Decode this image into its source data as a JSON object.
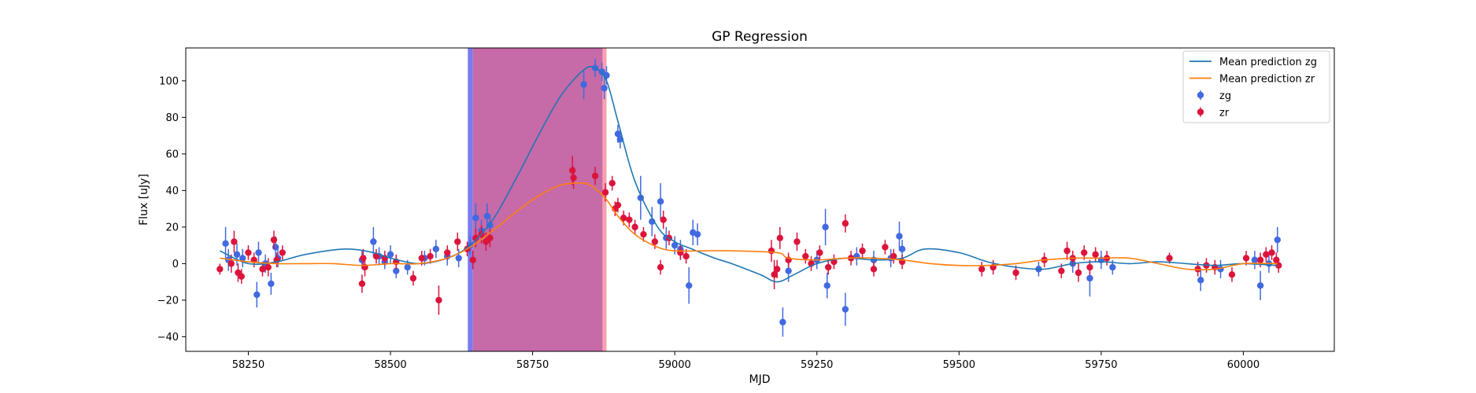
{
  "chart_data": {
    "type": "scatter",
    "title": "GP Regression",
    "xlabel": "MJD",
    "ylabel": "Flux [uJy]",
    "xlim": [
      58140,
      60160
    ],
    "ylim": [
      -48,
      118
    ],
    "x_ticks": [
      58250,
      58500,
      58750,
      59000,
      59250,
      59500,
      59750,
      60000
    ],
    "y_ticks": [
      -40,
      -20,
      0,
      20,
      40,
      60,
      80,
      100
    ],
    "grid": false,
    "legend_position": "top-right",
    "colors": {
      "zg_points": "#4169e1",
      "zr_points": "#dc143c",
      "zg_mean": "#1f77b4",
      "zr_mean": "#ff7f0e",
      "zg_band": "#7b7bef",
      "zr_band": "#f8a0b0",
      "overlap_band": "#c66aa8"
    },
    "shaded_regions": [
      {
        "x0": 58636,
        "x1": 58645,
        "color": "#7b7bef"
      },
      {
        "x0": 58645,
        "x1": 58873,
        "color": "#c66aa8"
      },
      {
        "x0": 58873,
        "x1": 58880,
        "color": "#f8a0b0"
      }
    ],
    "lines": [
      {
        "name": "Mean prediction zg",
        "color": "#1f77b4",
        "x": [
          58200,
          58250,
          58300,
          58350,
          58420,
          58470,
          58500,
          58550,
          58600,
          58640,
          58680,
          58720,
          58760,
          58800,
          58840,
          58860,
          58880,
          58900,
          58930,
          58970,
          59000,
          59030,
          59070,
          59100,
          59150,
          59180,
          59210,
          59250,
          59300,
          59350,
          59400,
          59440,
          59500,
          59550,
          59600,
          59650,
          59700,
          59750,
          59800,
          59850,
          59900,
          59950,
          60000,
          60060
        ],
        "y": [
          7,
          0,
          1,
          5,
          8,
          6,
          3,
          0,
          3,
          10,
          24,
          46,
          70,
          92,
          106,
          107,
          100,
          78,
          45,
          20,
          12,
          8,
          3,
          0,
          -6,
          -10,
          -6,
          0,
          3,
          2,
          3,
          8,
          6,
          1,
          -2,
          -3,
          0,
          1,
          0,
          1,
          0,
          -1,
          0,
          -1
        ]
      },
      {
        "name": "Mean prediction zr",
        "color": "#ff7f0e",
        "x": [
          58200,
          58250,
          58300,
          58350,
          58400,
          58450,
          58500,
          58550,
          58600,
          58640,
          58680,
          58720,
          58760,
          58800,
          58840,
          58860,
          58880,
          58900,
          58930,
          58970,
          59000,
          59050,
          59100,
          59180,
          59200,
          59250,
          59300,
          59350,
          59400,
          59450,
          59500,
          59550,
          59600,
          59650,
          59700,
          59750,
          59800,
          59850,
          59900,
          59950,
          60000,
          60060
        ],
        "y": [
          3,
          1,
          0,
          0,
          0,
          -1,
          0,
          0,
          3,
          9,
          18,
          28,
          37,
          43,
          44,
          41,
          35,
          26,
          16,
          9,
          7,
          7,
          7,
          6,
          3,
          2,
          3,
          3,
          2,
          0,
          -1,
          -1,
          0,
          2,
          3,
          3,
          3,
          0,
          -3,
          -3,
          0,
          0
        ]
      }
    ],
    "series": [
      {
        "name": "zg",
        "color": "#4169e1",
        "points": [
          {
            "x": 58210,
            "y": 11,
            "err": 9
          },
          {
            "x": 58215,
            "y": 2,
            "err": 6
          },
          {
            "x": 58230,
            "y": 5,
            "err": 6
          },
          {
            "x": 58240,
            "y": 3,
            "err": 5
          },
          {
            "x": 58265,
            "y": -17,
            "err": 7
          },
          {
            "x": 58268,
            "y": 6,
            "err": 6
          },
          {
            "x": 58280,
            "y": 0,
            "err": 5
          },
          {
            "x": 58290,
            "y": -11,
            "err": 6
          },
          {
            "x": 58298,
            "y": 9,
            "err": 6
          },
          {
            "x": 58302,
            "y": 3,
            "err": 5
          },
          {
            "x": 58450,
            "y": 2,
            "err": 5
          },
          {
            "x": 58470,
            "y": 12,
            "err": 8
          },
          {
            "x": 58480,
            "y": 4,
            "err": 5
          },
          {
            "x": 58490,
            "y": 1,
            "err": 4
          },
          {
            "x": 58500,
            "y": 5,
            "err": 5
          },
          {
            "x": 58510,
            "y": -4,
            "err": 4
          },
          {
            "x": 58530,
            "y": -2,
            "err": 4
          },
          {
            "x": 58560,
            "y": 3,
            "err": 4
          },
          {
            "x": 58580,
            "y": 8,
            "err": 5
          },
          {
            "x": 58600,
            "y": 4,
            "err": 5
          },
          {
            "x": 58620,
            "y": 3,
            "err": 5
          },
          {
            "x": 58640,
            "y": 10,
            "err": 5
          },
          {
            "x": 58650,
            "y": 25,
            "err": 8
          },
          {
            "x": 58660,
            "y": 18,
            "err": 6
          },
          {
            "x": 58670,
            "y": 26,
            "err": 7
          },
          {
            "x": 58675,
            "y": 21,
            "err": 6
          },
          {
            "x": 58840,
            "y": 98,
            "err": 8
          },
          {
            "x": 58860,
            "y": 107,
            "err": 5
          },
          {
            "x": 58872,
            "y": 105,
            "err": 5
          },
          {
            "x": 58876,
            "y": 96,
            "err": 6
          },
          {
            "x": 58880,
            "y": 103,
            "err": 5
          },
          {
            "x": 58900,
            "y": 71,
            "err": 5
          },
          {
            "x": 58904,
            "y": 68,
            "err": 5
          },
          {
            "x": 58940,
            "y": 36,
            "err": 12
          },
          {
            "x": 58960,
            "y": 23,
            "err": 8
          },
          {
            "x": 58975,
            "y": 34,
            "err": 10
          },
          {
            "x": 58985,
            "y": 14,
            "err": 6
          },
          {
            "x": 59000,
            "y": 10,
            "err": 5
          },
          {
            "x": 59010,
            "y": 8,
            "err": 5
          },
          {
            "x": 59025,
            "y": -12,
            "err": 10
          },
          {
            "x": 59032,
            "y": 17,
            "err": 7
          },
          {
            "x": 59040,
            "y": 16,
            "err": 6
          },
          {
            "x": 59190,
            "y": -32,
            "err": 8
          },
          {
            "x": 59200,
            "y": -4,
            "err": 6
          },
          {
            "x": 59250,
            "y": 2,
            "err": 5
          },
          {
            "x": 59265,
            "y": 20,
            "err": 10
          },
          {
            "x": 59268,
            "y": -12,
            "err": 7
          },
          {
            "x": 59300,
            "y": -25,
            "err": 9
          },
          {
            "x": 59320,
            "y": 4,
            "err": 5
          },
          {
            "x": 59350,
            "y": 2,
            "err": 5
          },
          {
            "x": 59380,
            "y": 3,
            "err": 5
          },
          {
            "x": 59395,
            "y": 15,
            "err": 8
          },
          {
            "x": 59400,
            "y": 8,
            "err": 5
          },
          {
            "x": 59640,
            "y": -3,
            "err": 4
          },
          {
            "x": 59700,
            "y": 0,
            "err": 5
          },
          {
            "x": 59730,
            "y": -8,
            "err": 10
          },
          {
            "x": 59750,
            "y": 2,
            "err": 5
          },
          {
            "x": 59770,
            "y": -2,
            "err": 4
          },
          {
            "x": 59925,
            "y": -9,
            "err": 6
          },
          {
            "x": 59960,
            "y": -3,
            "err": 5
          },
          {
            "x": 60020,
            "y": 2,
            "err": 5
          },
          {
            "x": 60030,
            "y": -12,
            "err": 8
          },
          {
            "x": 60045,
            "y": 0,
            "err": 5
          },
          {
            "x": 60060,
            "y": 13,
            "err": 7
          }
        ]
      },
      {
        "name": "zr",
        "color": "#dc143c",
        "points": [
          {
            "x": 58200,
            "y": -3,
            "err": 3
          },
          {
            "x": 58220,
            "y": 0,
            "err": 5
          },
          {
            "x": 58225,
            "y": 12,
            "err": 6
          },
          {
            "x": 58232,
            "y": -5,
            "err": 5
          },
          {
            "x": 58238,
            "y": -7,
            "err": 4
          },
          {
            "x": 58250,
            "y": 6,
            "err": 4
          },
          {
            "x": 58260,
            "y": 2,
            "err": 4
          },
          {
            "x": 58275,
            "y": -3,
            "err": 4
          },
          {
            "x": 58285,
            "y": -2,
            "err": 5
          },
          {
            "x": 58295,
            "y": 13,
            "err": 5
          },
          {
            "x": 58300,
            "y": 2,
            "err": 4
          },
          {
            "x": 58310,
            "y": 6,
            "err": 4
          },
          {
            "x": 58450,
            "y": -11,
            "err": 5
          },
          {
            "x": 58452,
            "y": 3,
            "err": 5
          },
          {
            "x": 58455,
            "y": -2,
            "err": 5
          },
          {
            "x": 58475,
            "y": 4,
            "err": 4
          },
          {
            "x": 58490,
            "y": 3,
            "err": 4
          },
          {
            "x": 58510,
            "y": 1,
            "err": 4
          },
          {
            "x": 58540,
            "y": -8,
            "err": 4
          },
          {
            "x": 58555,
            "y": 3,
            "err": 4
          },
          {
            "x": 58570,
            "y": 4,
            "err": 4
          },
          {
            "x": 58585,
            "y": -20,
            "err": 8
          },
          {
            "x": 58600,
            "y": 6,
            "err": 4
          },
          {
            "x": 58618,
            "y": 12,
            "err": 5
          },
          {
            "x": 58635,
            "y": 8,
            "err": 4
          },
          {
            "x": 58645,
            "y": 2,
            "err": 5
          },
          {
            "x": 58650,
            "y": 14,
            "err": 5
          },
          {
            "x": 58660,
            "y": 16,
            "err": 5
          },
          {
            "x": 58668,
            "y": 12,
            "err": 5
          },
          {
            "x": 58675,
            "y": 14,
            "err": 5
          },
          {
            "x": 58820,
            "y": 51,
            "err": 8
          },
          {
            "x": 58822,
            "y": 47,
            "err": 6
          },
          {
            "x": 58860,
            "y": 48,
            "err": 5
          },
          {
            "x": 58878,
            "y": 39,
            "err": 5
          },
          {
            "x": 58890,
            "y": 44,
            "err": 4
          },
          {
            "x": 58895,
            "y": 30,
            "err": 4
          },
          {
            "x": 58900,
            "y": 32,
            "err": 4
          },
          {
            "x": 58910,
            "y": 25,
            "err": 4
          },
          {
            "x": 58920,
            "y": 24,
            "err": 4
          },
          {
            "x": 58930,
            "y": 20,
            "err": 4
          },
          {
            "x": 58945,
            "y": 16,
            "err": 4
          },
          {
            "x": 58965,
            "y": 12,
            "err": 4
          },
          {
            "x": 58975,
            "y": -2,
            "err": 4
          },
          {
            "x": 58980,
            "y": 24,
            "err": 5
          },
          {
            "x": 58990,
            "y": 14,
            "err": 4
          },
          {
            "x": 59010,
            "y": 6,
            "err": 4
          },
          {
            "x": 59020,
            "y": 4,
            "err": 4
          },
          {
            "x": 59170,
            "y": 7,
            "err": 6
          },
          {
            "x": 59175,
            "y": -6,
            "err": 8
          },
          {
            "x": 59180,
            "y": -3,
            "err": 5
          },
          {
            "x": 59185,
            "y": 14,
            "err": 6
          },
          {
            "x": 59200,
            "y": 2,
            "err": 4
          },
          {
            "x": 59215,
            "y": 12,
            "err": 5
          },
          {
            "x": 59230,
            "y": 4,
            "err": 4
          },
          {
            "x": 59240,
            "y": 0,
            "err": 4
          },
          {
            "x": 59255,
            "y": 6,
            "err": 4
          },
          {
            "x": 59270,
            "y": -2,
            "err": 4
          },
          {
            "x": 59280,
            "y": 1,
            "err": 4
          },
          {
            "x": 59300,
            "y": 22,
            "err": 5
          },
          {
            "x": 59310,
            "y": 3,
            "err": 4
          },
          {
            "x": 59330,
            "y": 7,
            "err": 4
          },
          {
            "x": 59350,
            "y": -3,
            "err": 4
          },
          {
            "x": 59370,
            "y": 9,
            "err": 4
          },
          {
            "x": 59385,
            "y": 4,
            "err": 4
          },
          {
            "x": 59400,
            "y": 1,
            "err": 4
          },
          {
            "x": 59540,
            "y": -3,
            "err": 4
          },
          {
            "x": 59560,
            "y": -2,
            "err": 4
          },
          {
            "x": 59600,
            "y": -5,
            "err": 4
          },
          {
            "x": 59650,
            "y": 2,
            "err": 4
          },
          {
            "x": 59680,
            "y": -4,
            "err": 4
          },
          {
            "x": 59690,
            "y": 7,
            "err": 5
          },
          {
            "x": 59700,
            "y": 3,
            "err": 4
          },
          {
            "x": 59710,
            "y": -5,
            "err": 5
          },
          {
            "x": 59720,
            "y": 6,
            "err": 4
          },
          {
            "x": 59730,
            "y": -2,
            "err": 4
          },
          {
            "x": 59740,
            "y": 5,
            "err": 4
          },
          {
            "x": 59760,
            "y": 3,
            "err": 4
          },
          {
            "x": 59870,
            "y": 3,
            "err": 3
          },
          {
            "x": 59920,
            "y": -3,
            "err": 4
          },
          {
            "x": 59935,
            "y": -1,
            "err": 4
          },
          {
            "x": 59950,
            "y": -2,
            "err": 4
          },
          {
            "x": 59980,
            "y": -6,
            "err": 4
          },
          {
            "x": 60005,
            "y": 3,
            "err": 4
          },
          {
            "x": 60030,
            "y": 2,
            "err": 4
          },
          {
            "x": 60040,
            "y": 5,
            "err": 4
          },
          {
            "x": 60050,
            "y": 6,
            "err": 4
          },
          {
            "x": 60058,
            "y": 2,
            "err": 4
          },
          {
            "x": 60062,
            "y": -1,
            "err": 4
          }
        ]
      }
    ],
    "legend": [
      {
        "label": "Mean prediction zg",
        "kind": "line",
        "color": "#1f77b4"
      },
      {
        "label": "Mean prediction zr",
        "kind": "line",
        "color": "#ff7f0e"
      },
      {
        "label": "zg",
        "kind": "point",
        "color": "#4169e1"
      },
      {
        "label": "zr",
        "kind": "point",
        "color": "#dc143c"
      }
    ]
  }
}
